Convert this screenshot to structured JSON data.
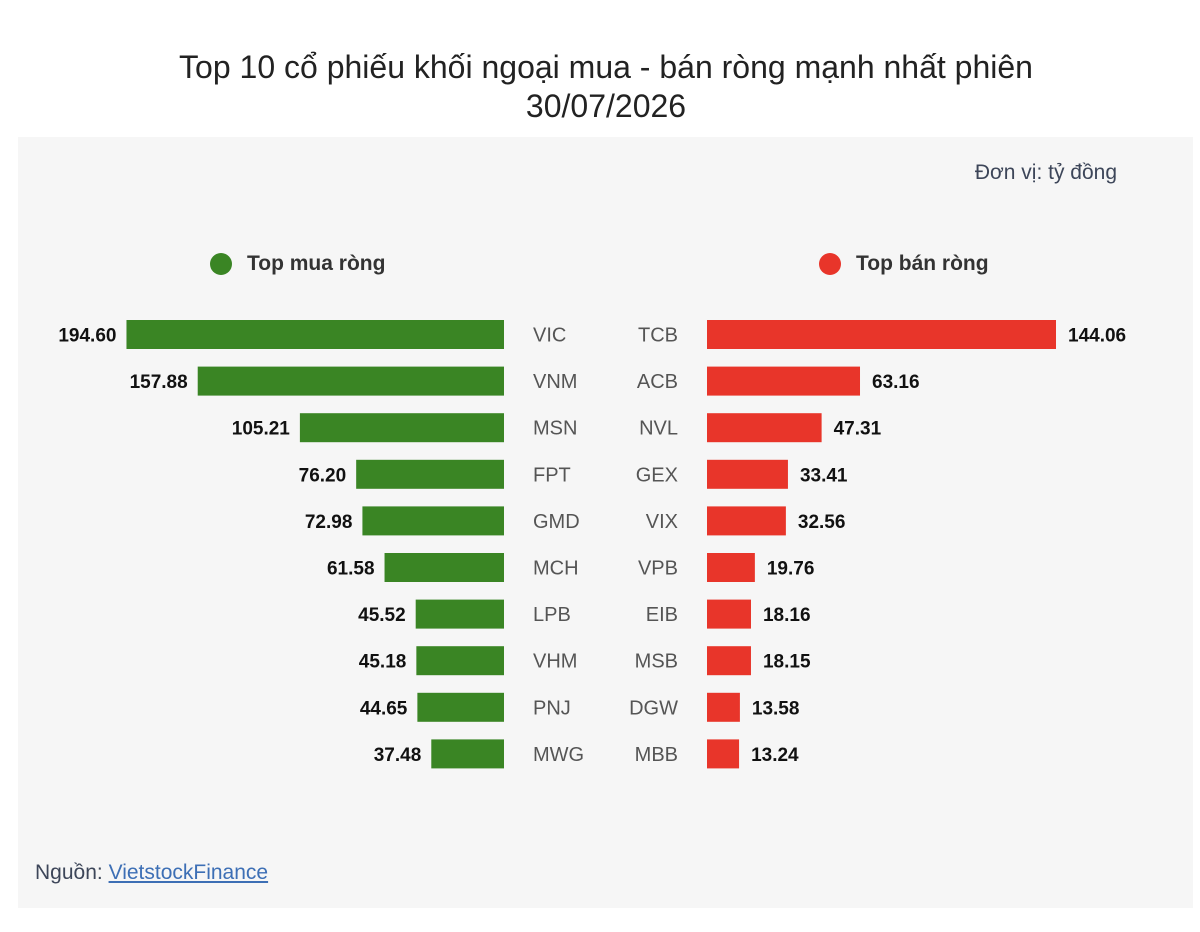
{
  "title_line1": "Top 10 cổ phiếu khối ngoại mua - bán ròng mạnh nhất phiên",
  "title_line2": "30/07/2026",
  "unit": "Đơn vị: tỷ đồng",
  "source_label": "Nguồn: ",
  "source_link": "VietstockFinance",
  "colors": {
    "buy": "#3a8524",
    "sell": "#e8352a"
  },
  "chart_data": [
    {
      "type": "bar",
      "name": "Top mua ròng",
      "categories": [
        "VIC",
        "VNM",
        "MSN",
        "FPT",
        "GMD",
        "MCH",
        "LPB",
        "VHM",
        "PNJ",
        "MWG"
      ],
      "values": [
        194.6,
        157.88,
        105.21,
        76.2,
        72.98,
        61.58,
        45.52,
        45.18,
        44.65,
        37.48
      ],
      "labels": [
        "194.60",
        "157.88",
        "105.21",
        "76.20",
        "72.98",
        "61.58",
        "45.52",
        "45.18",
        "44.65",
        "37.48"
      ]
    },
    {
      "type": "bar",
      "name": "Top bán ròng",
      "categories": [
        "TCB",
        "ACB",
        "NVL",
        "GEX",
        "VIX",
        "VPB",
        "EIB",
        "MSB",
        "DGW",
        "MBB"
      ],
      "values": [
        144.06,
        63.16,
        47.31,
        33.41,
        32.56,
        19.76,
        18.16,
        18.15,
        13.58,
        13.24
      ],
      "labels": [
        "144.06",
        "63.16",
        "47.31",
        "33.41",
        "32.56",
        "19.76",
        "18.16",
        "18.15",
        "13.58",
        "13.24"
      ]
    }
  ]
}
